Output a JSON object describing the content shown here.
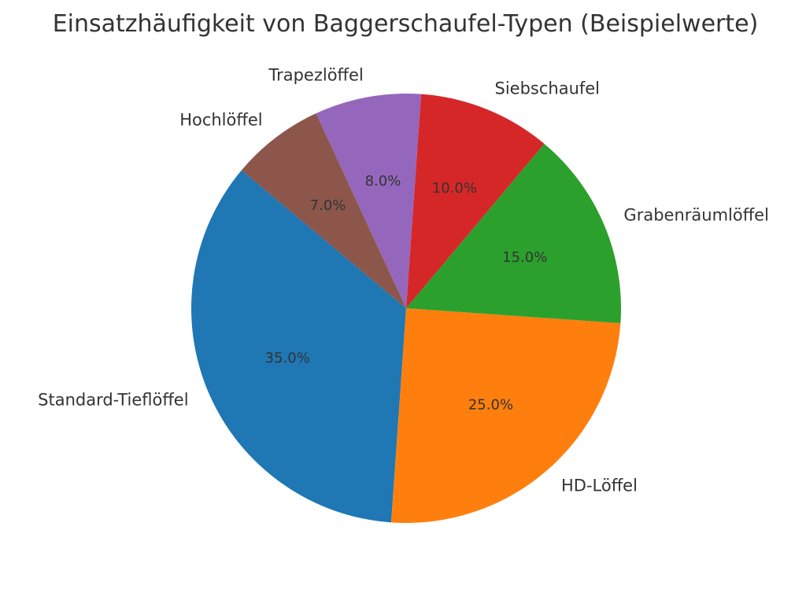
{
  "chart_data": {
    "type": "pie",
    "title": "Einsatzhäufigkeit von Baggerschaufel-Typen (Beispielwerte)",
    "slices": [
      {
        "label": "Standard-Tieflöffel",
        "value": 35,
        "pct_label": "35.0%",
        "color": "#1f77b4"
      },
      {
        "label": "HD-Löffel",
        "value": 25,
        "pct_label": "25.0%",
        "color": "#ff7f0e"
      },
      {
        "label": "Grabenräumlöffel",
        "value": 15,
        "pct_label": "15.0%",
        "color": "#2ca02c"
      },
      {
        "label": "Siebschaufel",
        "value": 10,
        "pct_label": "10.0%",
        "color": "#d62728"
      },
      {
        "label": "Trapezlöffel",
        "value": 8,
        "pct_label": "8.0%",
        "color": "#9467bd"
      },
      {
        "label": "Hochlöffel",
        "value": 7,
        "pct_label": "7.0%",
        "color": "#8c564b"
      }
    ],
    "start_angle_deg": 140,
    "direction": "counterclockwise",
    "legend": "none"
  }
}
